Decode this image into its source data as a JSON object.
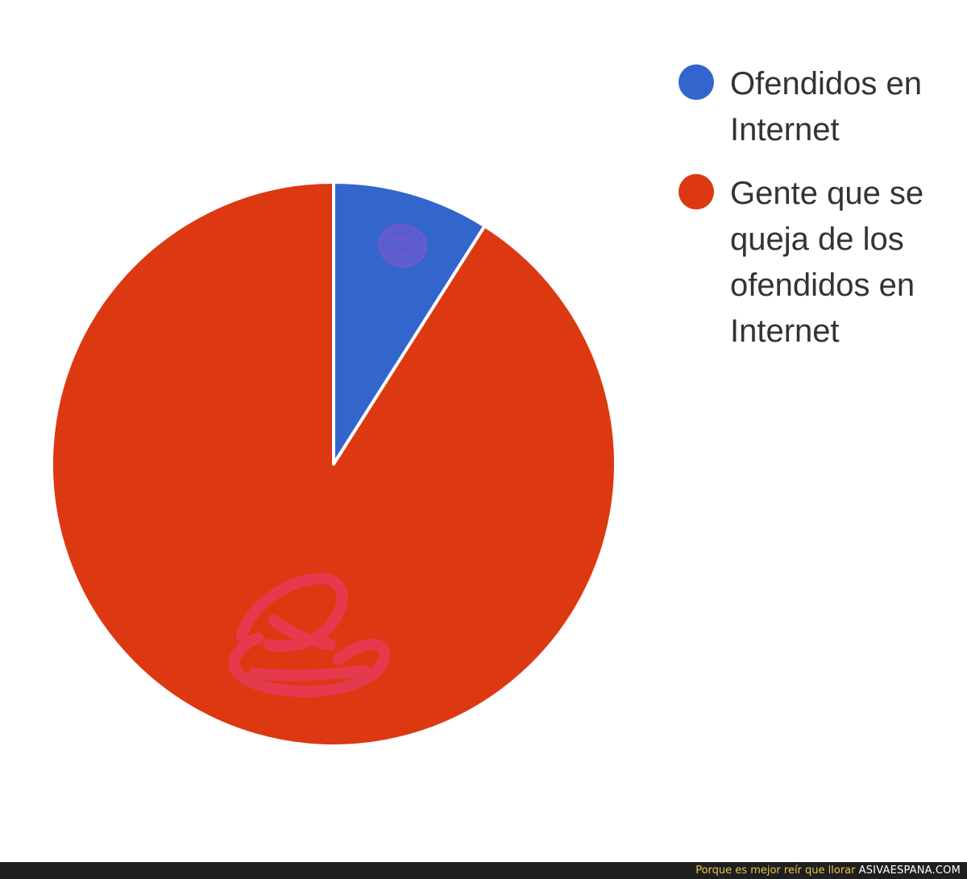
{
  "chart_data": {
    "type": "pie",
    "start_angle_deg": 0,
    "slices": [
      {
        "label": "Ofendidos en Internet",
        "value": 9,
        "color": "#3366cc"
      },
      {
        "label": "Gente que se queja de los ofendidos en Internet",
        "value": 91,
        "color": "#dc3912"
      }
    ],
    "legend_position": "right",
    "legend_lines": [
      [
        "Ofendidos en",
        "Internet"
      ],
      [
        "Gente que se",
        "queja de los",
        "ofendidos en",
        "Internet"
      ]
    ],
    "scribble_colors": {
      "blue_slice_mark": "#6a5acd",
      "red_slice_mark": "#e03a4a"
    }
  },
  "footer": {
    "tagline": "Porque es mejor reír que llorar",
    "site": "ASIVAESPANA.COM",
    "background": "#1f1f1f",
    "tagline_color": "#e7c84a"
  }
}
